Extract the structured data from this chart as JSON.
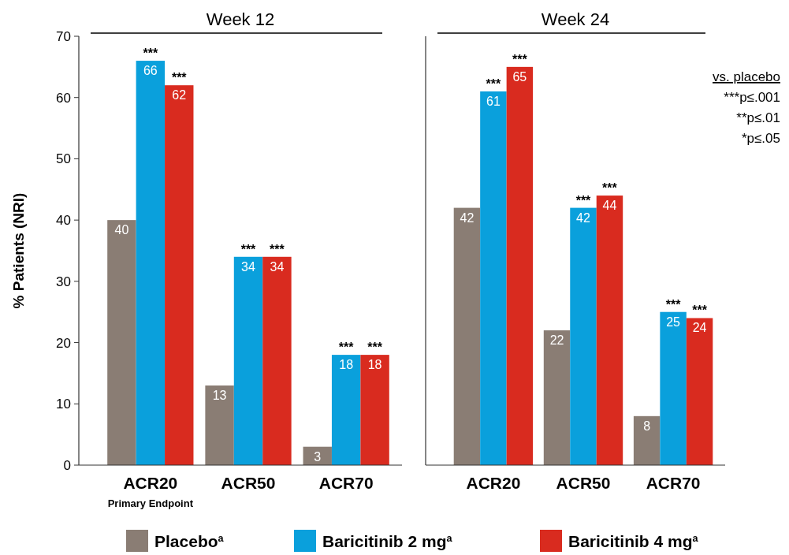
{
  "chart_data": [
    {
      "type": "bar",
      "title": "Week 12",
      "ylabel": "% Patients (NRI)",
      "categories": [
        "ACR20\nPrimary Endpoint",
        "ACR50",
        "ACR70"
      ],
      "series": [
        {
          "name": "Placebo$^{a}$",
          "color": "#8a7d74",
          "values": [
            40,
            13,
            3
          ]
        },
        {
          "name": "Baricitinib 2 mg$^{a}$",
          "color": "#0aa0dc",
          "values": [
            66,
            34,
            18
          ]
        },
        {
          "name": "Baricitinib 4 mg$^{a}$",
          "color": "#d92b1f",
          "values": [
            62,
            34,
            18
          ]
        }
      ],
      "ylim": [
        0,
        70
      ],
      "yticks": [
        0,
        10,
        20,
        30,
        40,
        50,
        60,
        70
      ],
      "data_labels": true,
      "legend": "bottom",
      "annotations": [
        "***",
        "***",
        "***",
        "***",
        "***",
        "***"
      ]
    },
    {
      "type": "bar",
      "title": "Week 24",
      "categories": [
        "ACR20",
        "ACR50",
        "ACR70"
      ],
      "series": [
        {
          "color": "#8a7d74",
          "values": [
            42,
            22,
            8
          ]
        },
        {
          "color": "#0aa0dc",
          "values": [
            61,
            42,
            25
          ]
        },
        {
          "color": "#d92b1f",
          "values": [
            65,
            44,
            24
          ]
        }
      ],
      "ylim": [
        0,
        70
      ],
      "tick_labels": "x",
      "data_labels": true,
      "annotations": [
        "***",
        "***",
        "***",
        "***",
        "***",
        "***",
        "vs. placebo",
        "***p≤.001",
        "**p≤.01",
        "*p≤.05"
      ]
    }
  ]
}
